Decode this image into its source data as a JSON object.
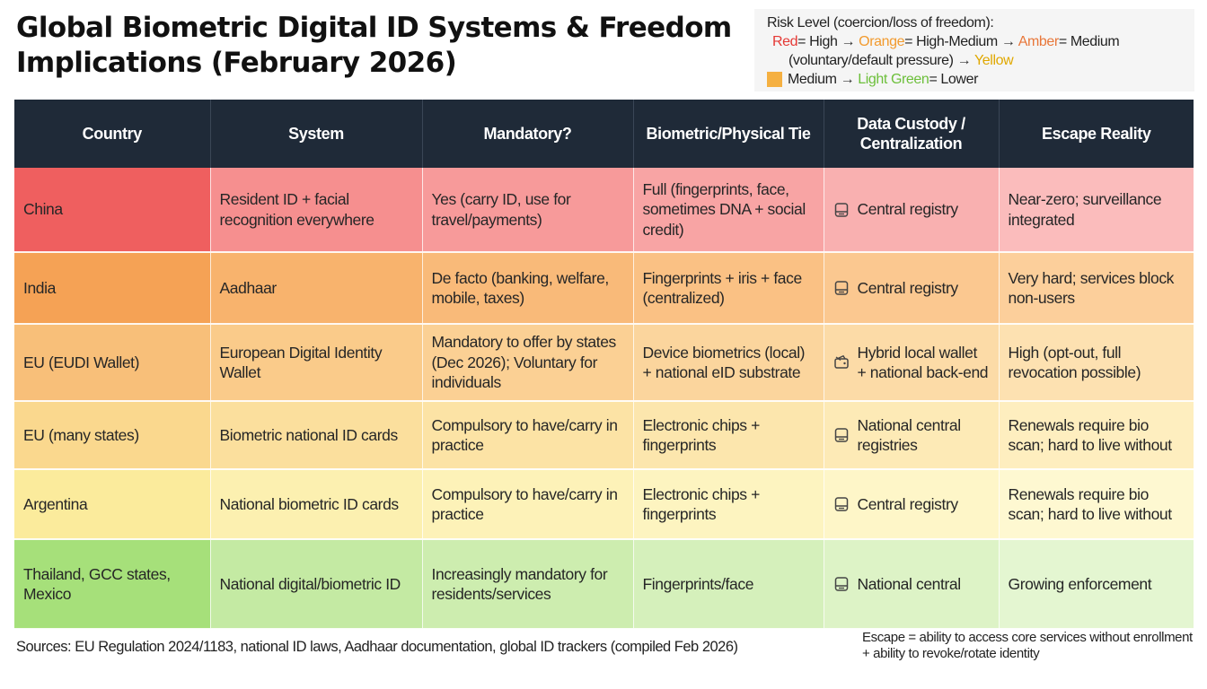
{
  "title_line1": "Global Biometric Digital ID Systems & Freedom",
  "title_line2": "Implications (February 2026)",
  "legend": {
    "heading": "Risk Level (coercion/loss of freedom):",
    "red": "Red",
    "eq_high": "= High",
    "orange": "Orange",
    "eq_high_medium": "= High-Medium",
    "amber": "Amber",
    "eq_medium": "= Medium",
    "voluntary": "(voluntary/default pressure)",
    "yellow": "Yellow",
    "medium": "Medium",
    "light_green": "Light Green",
    "eq_lower": "= Lower",
    "arrow": "→",
    "swatch_color": "#f5b041",
    "colors": {
      "red": "#e53935",
      "orange": "#f29a2e",
      "amber": "#e8773a",
      "yellow": "#e0a800",
      "light_green": "#6cbf3a"
    }
  },
  "table": {
    "headers": [
      "Country",
      "System",
      "Mandatory?",
      "Biometric/Physical Tie",
      "Data Custody / Centralization",
      "Escape Reality"
    ],
    "header_bg": "#1f2a38",
    "rows": [
      {
        "country": "China",
        "system": "Resident ID + facial recognition everywhere",
        "mandatory": "Yes (carry ID, use for travel/payments)",
        "biometric": "Full (fingerprints, face, sometimes DNA + social credit)",
        "custody": "Central registry",
        "custody_icon": "database-icon",
        "escape": "Near-zero; surveillance integrated",
        "bg": [
          "#ef5f5f",
          "#f68f8f",
          "#f79a9a",
          "#f8a4a4",
          "#f9b0b0",
          "#fbbcbc"
        ]
      },
      {
        "country": "India",
        "system": "Aadhaar",
        "mandatory": "De facto (banking, welfare, mobile, taxes)",
        "biometric": "Fingerprints + iris + face (centralized)",
        "custody": "Central registry",
        "custody_icon": "database-icon",
        "escape": "Very hard; services block non-users",
        "bg": [
          "#f5a255",
          "#f8b36d",
          "#f9ba79",
          "#fac184",
          "#fbc890",
          "#fccf9b"
        ]
      },
      {
        "country": "EU (EUDI Wallet)",
        "system": "European Digital Identity Wallet",
        "mandatory": "Mandatory to offer by states (Dec 2026); Voluntary for individuals",
        "biometric": "Device biometrics (local) + national eID substrate",
        "custody": "Hybrid local wallet + national back-end",
        "custody_icon": "wallet-icon",
        "escape": "High (opt-out, full revocation possible)",
        "bg": [
          "#f8bf79",
          "#facb8a",
          "#fbd094",
          "#fbd59d",
          "#fcdba7",
          "#fde1b1"
        ]
      },
      {
        "country": "EU (many states)",
        "system": "Biometric national ID cards",
        "mandatory": "Compulsory to have/carry in practice",
        "biometric": "Electronic chips + fingerprints",
        "custody": "National central registries",
        "custody_icon": "database-icon",
        "escape": "Renewals require bio scan; hard to live without",
        "bg": [
          "#fad88e",
          "#fbdf9d",
          "#fce3a5",
          "#fce6ad",
          "#fdeab6",
          "#feeebf"
        ]
      },
      {
        "country": "Argentina",
        "system": "National biometric ID cards",
        "mandatory": "Compulsory to have/carry in practice",
        "biometric": "Electronic chips + fingerprints",
        "custody": "Central registry",
        "custody_icon": "database-icon",
        "escape": "Renewals require bio scan; hard to live without",
        "bg": [
          "#fbeb9c",
          "#fcf0b0",
          "#fdf2b8",
          "#fdf4c0",
          "#fef6c8",
          "#fef8d1"
        ]
      },
      {
        "country": "Thailand, GCC states, Mexico",
        "system": "National digital/biometric ID",
        "mandatory": "Increasingly mandatory for residents/services",
        "biometric": "Fingerprints/face",
        "custody": "National central",
        "custody_icon": "database-icon",
        "escape": "Growing enforcement",
        "bg": [
          "#a6e07a",
          "#c4eaa3",
          "#cdedaf",
          "#d5f0bb",
          "#ddf3c6",
          "#e4f6d1"
        ]
      }
    ]
  },
  "sources": "Sources: EU Regulation 2024/1183, national ID laws, Aadhaar documentation, global ID trackers (compiled Feb 2026)",
  "footnote": "Escape = ability to access core services without enrollment + ability to revoke/rotate identity"
}
